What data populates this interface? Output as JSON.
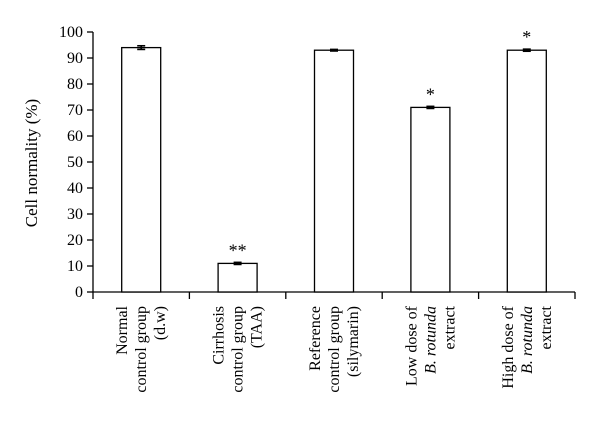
{
  "chart_data": {
    "type": "bar",
    "ylabel": "Cell normality (%)",
    "ylim": [
      0,
      100
    ],
    "yticks": [
      0,
      10,
      20,
      30,
      40,
      50,
      60,
      70,
      80,
      90,
      100
    ],
    "grid": false,
    "categories": [
      {
        "lines": [
          [
            {
              "text": "Normal",
              "italic": false
            }
          ],
          [
            {
              "text": "control group",
              "italic": false
            }
          ],
          [
            {
              "text": "(d.w)",
              "italic": false
            }
          ]
        ]
      },
      {
        "lines": [
          [
            {
              "text": "Cirrhosis",
              "italic": false
            }
          ],
          [
            {
              "text": "control group",
              "italic": false
            }
          ],
          [
            {
              "text": "(TAA)",
              "italic": false
            }
          ]
        ]
      },
      {
        "lines": [
          [
            {
              "text": "Reference",
              "italic": false
            }
          ],
          [
            {
              "text": "control group",
              "italic": false
            }
          ],
          [
            {
              "text": "(silymarin)",
              "italic": false
            }
          ]
        ]
      },
      {
        "lines": [
          [
            {
              "text": "Low dose of",
              "italic": false
            }
          ],
          [
            {
              "text": "B. rotunda",
              "italic": true
            }
          ],
          [
            {
              "text": "extract",
              "italic": false
            }
          ]
        ]
      },
      {
        "lines": [
          [
            {
              "text": "High dose of",
              "italic": false
            }
          ],
          [
            {
              "text": "B. rotunda",
              "italic": true
            }
          ],
          [
            {
              "text": "extract",
              "italic": false
            }
          ]
        ]
      }
    ],
    "values": [
      94,
      11,
      93,
      71,
      93
    ],
    "errors": [
      0.7,
      0.4,
      0.3,
      0.4,
      0.4
    ],
    "significance": [
      "",
      "**",
      "",
      "*",
      "*"
    ]
  }
}
